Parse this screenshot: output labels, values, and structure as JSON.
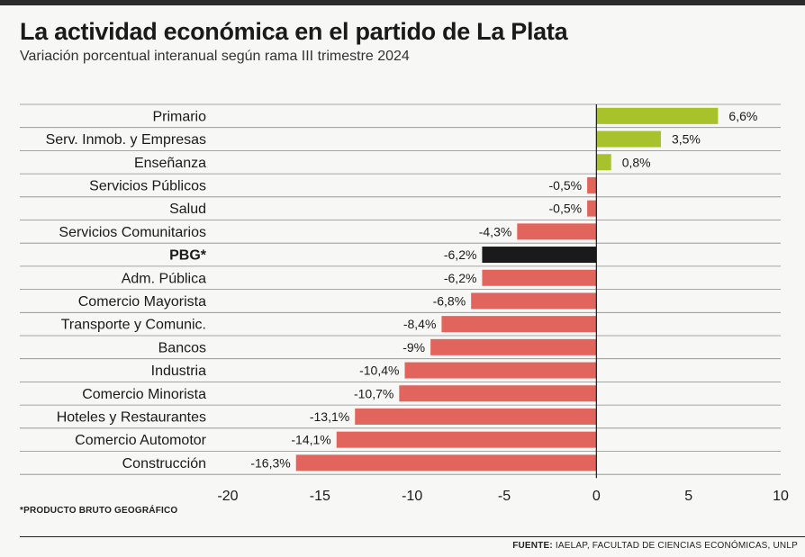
{
  "chart_data": {
    "type": "bar",
    "orientation": "horizontal",
    "title": "La actividad económica en el partido de La Plata",
    "subtitle": "Variación porcentual interanual según rama III trimestre 2024",
    "categories": [
      "Primario",
      "Serv. Inmob. y Empresas",
      "Enseñanza",
      "Servicios Públicos",
      "Salud",
      "Servicios Comunitarios",
      "PBG*",
      "Adm. Pública",
      "Comercio Mayorista",
      "Transporte y Comunic.",
      "Bancos",
      "Industria",
      "Comercio Minorista",
      "Hoteles y Restaurantes",
      "Comercio Automotor",
      "Construcción"
    ],
    "values": [
      6.6,
      3.5,
      0.8,
      -0.5,
      -0.5,
      -4.3,
      -6.2,
      -6.2,
      -6.8,
      -8.4,
      -9,
      -10.4,
      -10.7,
      -13.1,
      -14.1,
      -16.3
    ],
    "value_labels": [
      "6,6%",
      "3,5%",
      "0,8%",
      "-0,5%",
      "-0,5%",
      "-4,3%",
      "-6,2%",
      "-6,2%",
      "-6,8%",
      "-8,4%",
      "-9%",
      "-10,4%",
      "-10,7%",
      "-13,1%",
      "-14,1%",
      "-16,3%"
    ],
    "highlight_category": "PBG*",
    "xlim": [
      -20,
      10
    ],
    "xticks": [
      -20,
      -15,
      -10,
      -5,
      0,
      5,
      10
    ],
    "xlabel": "",
    "ylabel": "",
    "colors": {
      "positive": "#a7c22a",
      "negative": "#e2655d",
      "highlight": "#1a1a1a",
      "gridline": "#8a8a8a"
    }
  },
  "footnote": "*PRODUCTO BRUTO GEOGRÁFICO",
  "source": {
    "label": "FUENTE:",
    "text": "IAELAP, FACULTAD DE CIENCIAS ECONÓMICAS, UNLP"
  }
}
